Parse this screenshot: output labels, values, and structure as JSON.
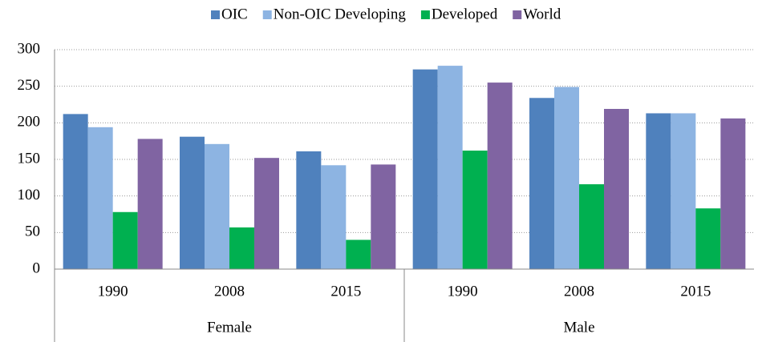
{
  "chart_data": {
    "type": "bar",
    "groups": [
      "Female",
      "Male"
    ],
    "categories": [
      "1990",
      "2008",
      "2015",
      "1990",
      "2008",
      "2015"
    ],
    "series": [
      {
        "name": "OIC",
        "color": "#4f81bd",
        "values": [
          212,
          181,
          161,
          273,
          234,
          213
        ]
      },
      {
        "name": "Non-OIC Developing",
        "color": "#8db4e2",
        "values": [
          194,
          171,
          142,
          278,
          249,
          213
        ]
      },
      {
        "name": "Developed",
        "color": "#00b050",
        "values": [
          78,
          57,
          40,
          162,
          116,
          83
        ]
      },
      {
        "name": "World",
        "color": "#8064a2",
        "values": [
          178,
          152,
          143,
          255,
          219,
          206
        ]
      }
    ],
    "ylim": [
      0,
      300
    ],
    "yticks": [
      0,
      50,
      100,
      150,
      200,
      250,
      300
    ],
    "grid": true,
    "legend": "top"
  }
}
